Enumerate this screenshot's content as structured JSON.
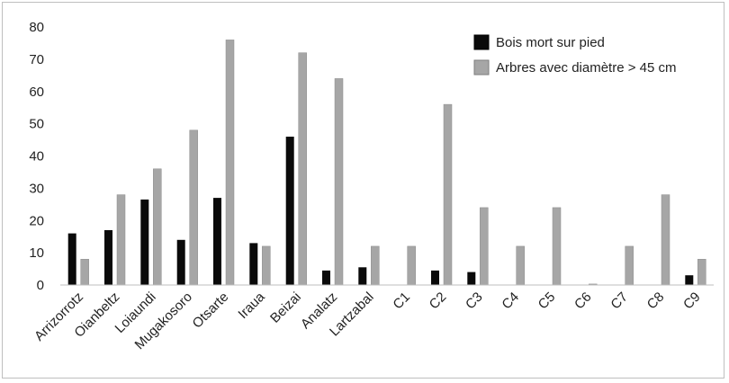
{
  "chart_data": {
    "type": "bar",
    "title": "",
    "xlabel": "",
    "ylabel": "",
    "ylim": [
      0,
      80
    ],
    "yticks": [
      0,
      10,
      20,
      30,
      40,
      50,
      60,
      70,
      80
    ],
    "grid": false,
    "legend_position": "top-right",
    "categories": [
      "Arrizorrotz",
      "Oianbeltz",
      "Loiaundi",
      "Mugakosoro",
      "Otsarte",
      "Iraua",
      "Beizai",
      "Analatz",
      "Lartzabal",
      "C1",
      "C2",
      "C3",
      "C4",
      "C5",
      "C6",
      "C7",
      "C8",
      "C9"
    ],
    "series": [
      {
        "name": "Bois mort sur pied",
        "color": "#0a0a0a",
        "values": [
          16,
          17,
          26.5,
          14,
          27,
          13,
          46,
          4.5,
          5.5,
          0,
          4.5,
          4,
          0,
          0,
          0,
          0,
          0,
          3
        ]
      },
      {
        "name": "Arbres avec diamètre > 45 cm",
        "color": "#a6a6a6",
        "values": [
          8,
          28,
          36,
          48,
          76,
          12,
          72,
          64,
          12,
          12,
          56,
          24,
          12,
          24,
          0.3,
          12,
          28,
          8
        ]
      }
    ]
  }
}
